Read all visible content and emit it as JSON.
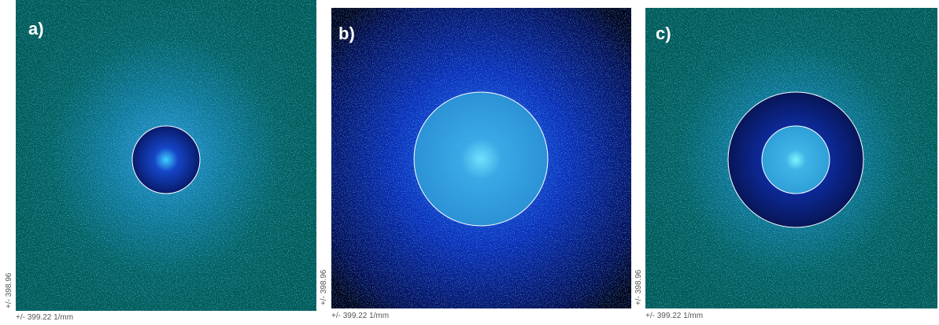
{
  "panels": [
    {
      "label": "a)",
      "x_axis_label": "+/- 399.22 1/mm",
      "y_axis_label": "+/- 398.96"
    },
    {
      "label": "b)",
      "x_axis_label": "+/- 399.22 1/mm",
      "y_axis_label": "+/- 398.96"
    },
    {
      "label": "c)",
      "x_axis_label": "+/- 399.22 1/mm",
      "y_axis_label": "+/- 398.96"
    }
  ]
}
